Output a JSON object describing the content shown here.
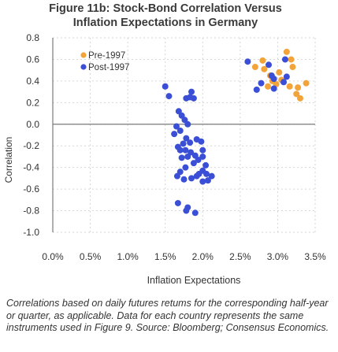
{
  "title_line1": "Figure 11b: Stock-Bond Correlation Versus",
  "title_line2": "Inflation Expectations in Germany",
  "note": "Correlations based on daily futures retums for the corresponding half-year or quarter, as applicable. Data for each country represents the same instruments used in Figure 9. Source: Bloomberg; Consensus Economics.",
  "chart_data": {
    "type": "scatter",
    "xlabel": "Inflation Expectations",
    "ylabel": "Correlation",
    "xlim": [
      0.0,
      3.5
    ],
    "ylim": [
      -1.0,
      0.8
    ],
    "x_ticks": [
      "0.0%",
      "0.5%",
      "1.0%",
      "1.5%",
      "2.0%",
      "2.5%",
      "3.0%",
      "3.5%"
    ],
    "y_ticks": [
      "0.8",
      "0.6",
      "0.4",
      "0.2",
      "0.0",
      "-0.2",
      "-0.4",
      "-0.6",
      "-0.8",
      "-1.0"
    ],
    "grid": true,
    "legend_position": "top-left inside",
    "series": [
      {
        "name": "Pre-1997",
        "color": "#f2a33a",
        "points": [
          [
            2.8,
            0.59
          ],
          [
            2.7,
            0.53
          ],
          [
            2.82,
            0.51
          ],
          [
            3.12,
            0.67
          ],
          [
            3.18,
            0.6
          ],
          [
            3.2,
            0.53
          ],
          [
            2.9,
            0.45
          ],
          [
            3.02,
            0.48
          ],
          [
            3.05,
            0.41
          ],
          [
            2.98,
            0.37
          ],
          [
            3.16,
            0.35
          ],
          [
            3.27,
            0.34
          ],
          [
            3.38,
            0.38
          ],
          [
            3.25,
            0.28
          ],
          [
            3.3,
            0.24
          ],
          [
            2.87,
            0.35
          ],
          [
            2.93,
            0.4
          ]
        ]
      },
      {
        "name": "Post-1997",
        "color": "#3a4fd6",
        "points": [
          [
            2.6,
            0.58
          ],
          [
            2.88,
            0.55
          ],
          [
            2.92,
            0.45
          ],
          [
            2.95,
            0.42
          ],
          [
            3.1,
            0.6
          ],
          [
            2.78,
            0.38
          ],
          [
            2.72,
            0.32
          ],
          [
            2.95,
            0.33
          ],
          [
            3.12,
            0.44
          ],
          [
            3.08,
            0.39
          ],
          [
            1.5,
            0.35
          ],
          [
            1.85,
            0.3
          ],
          [
            1.55,
            0.26
          ],
          [
            1.78,
            0.24
          ],
          [
            1.83,
            0.25
          ],
          [
            1.88,
            0.24
          ],
          [
            1.68,
            0.12
          ],
          [
            1.72,
            0.08
          ],
          [
            1.76,
            0.04
          ],
          [
            1.65,
            -0.02
          ],
          [
            1.8,
            0.0
          ],
          [
            1.7,
            -0.06
          ],
          [
            1.62,
            -0.09
          ],
          [
            1.78,
            -0.13
          ],
          [
            1.83,
            -0.17
          ],
          [
            1.74,
            -0.18
          ],
          [
            1.92,
            -0.14
          ],
          [
            1.98,
            -0.16
          ],
          [
            1.67,
            -0.21
          ],
          [
            1.7,
            -0.24
          ],
          [
            1.77,
            -0.24
          ],
          [
            1.84,
            -0.26
          ],
          [
            2.0,
            -0.24
          ],
          [
            1.9,
            -0.29
          ],
          [
            1.8,
            -0.3
          ],
          [
            1.72,
            -0.31
          ],
          [
            1.94,
            -0.33
          ],
          [
            2.0,
            -0.3
          ],
          [
            2.04,
            -0.38
          ],
          [
            1.88,
            -0.36
          ],
          [
            1.77,
            -0.4
          ],
          [
            1.7,
            -0.44
          ],
          [
            1.66,
            -0.48
          ],
          [
            1.75,
            -0.51
          ],
          [
            1.85,
            -0.5
          ],
          [
            1.92,
            -0.48
          ],
          [
            2.0,
            -0.53
          ],
          [
            2.07,
            -0.52
          ],
          [
            2.0,
            -0.43
          ],
          [
            1.95,
            -0.46
          ],
          [
            2.05,
            -0.46
          ],
          [
            2.12,
            -0.48
          ],
          [
            1.67,
            -0.73
          ],
          [
            1.78,
            -0.8
          ],
          [
            1.9,
            -0.82
          ],
          [
            1.8,
            -0.77
          ]
        ]
      }
    ]
  }
}
